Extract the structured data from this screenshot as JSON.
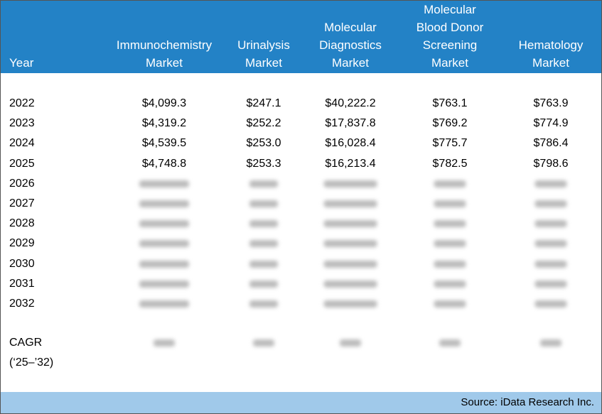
{
  "table": {
    "columns": [
      [
        "Year"
      ],
      [
        "Immunochemistry",
        "Market"
      ],
      [
        "Urinalysis",
        "Market"
      ],
      [
        "Molecular",
        "Diagnostics",
        "Market"
      ],
      [
        "Molecular",
        "Blood Donor",
        "Screening",
        "Market"
      ],
      [
        "Hematology",
        "Market"
      ]
    ],
    "rows": [
      {
        "year": "2022",
        "values": [
          "$4,099.3",
          "$247.1",
          "$40,222.2",
          "$763.1",
          "$763.9"
        ]
      },
      {
        "year": "2023",
        "values": [
          "$4,319.2",
          "$252.2",
          "$17,837.8",
          "$769.2",
          "$774.9"
        ]
      },
      {
        "year": "2024",
        "values": [
          "$4,539.5",
          "$253.0",
          "$16,028.4",
          "$775.7",
          "$786.4"
        ]
      },
      {
        "year": "2025",
        "values": [
          "$4,748.8",
          "$253.3",
          "$16,213.4",
          "$782.5",
          "$798.6"
        ]
      },
      {
        "year": "2026"
      },
      {
        "year": "2027"
      },
      {
        "year": "2028"
      },
      {
        "year": "2029"
      },
      {
        "year": "2030"
      },
      {
        "year": "2031"
      },
      {
        "year": "2032"
      }
    ],
    "cagr": [
      "CAGR",
      "(‘25–’32)"
    ],
    "source": "Source: iData Research Inc."
  }
}
